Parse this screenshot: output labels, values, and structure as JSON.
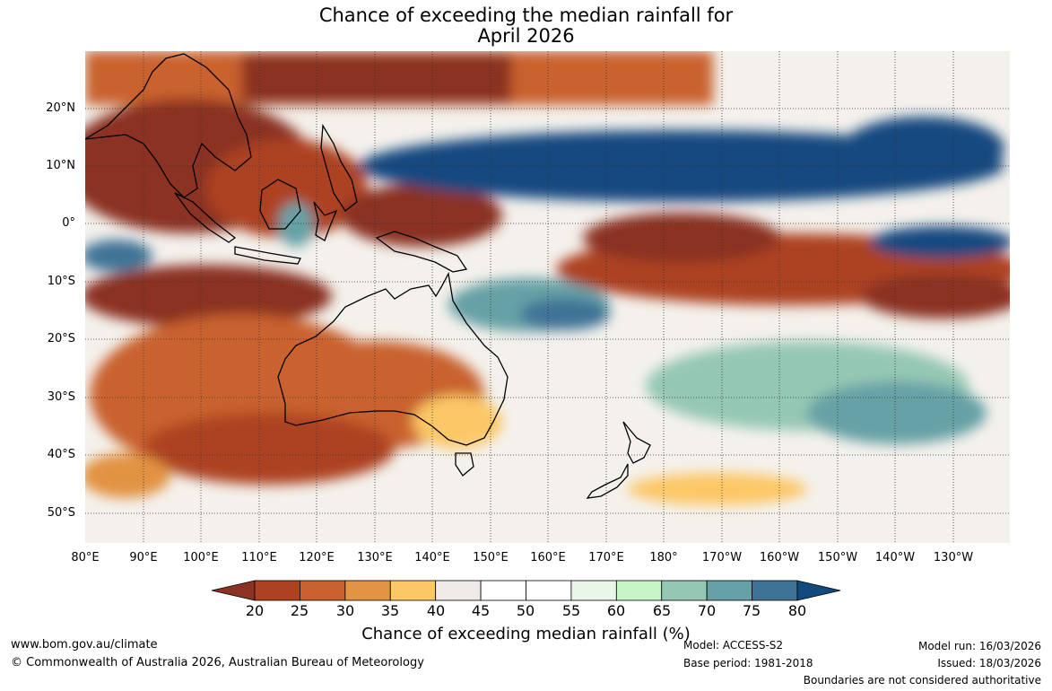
{
  "title": {
    "line1": "Chance of exceeding the median rainfall for",
    "line2": "April 2026"
  },
  "map": {
    "lat_labels": [
      "20°N",
      "10°N",
      "0°",
      "10°S",
      "20°S",
      "30°S",
      "40°S",
      "50°S"
    ],
    "lon_labels": [
      "80°E",
      "90°E",
      "100°E",
      "110°E",
      "120°E",
      "130°E",
      "140°E",
      "150°E",
      "160°E",
      "170°E",
      "180°",
      "170°W",
      "160°W",
      "150°W",
      "140°W",
      "130°W"
    ]
  },
  "colorbar": {
    "ticks": [
      "20",
      "25",
      "30",
      "35",
      "40",
      "45",
      "50",
      "55",
      "60",
      "65",
      "70",
      "75",
      "80"
    ],
    "colors": [
      "#ad4222",
      "#c9622e",
      "#e29343",
      "#fcc766",
      "#eeebe6",
      "#ffffff",
      "#ffffff",
      "#eaf6e9",
      "#c6f5c8",
      "#95c8b4",
      "#66a1a6",
      "#3f7396"
    ],
    "under_color": "#8b3222",
    "over_color": "#124a80",
    "title": "Chance of exceeding median rainfall (%)"
  },
  "footer": {
    "url": "www.bom.gov.au/climate",
    "copyright": "© Commonwealth of Australia 2026, Australian Bureau of Meteorology",
    "model": "Model: ACCESS-S2",
    "base_period": "Base period: 1981-2018",
    "model_run": "Model run: 16/03/2026",
    "issued": "Issued: 18/03/2026",
    "disclaimer": "Boundaries are not considered authoritative"
  }
}
